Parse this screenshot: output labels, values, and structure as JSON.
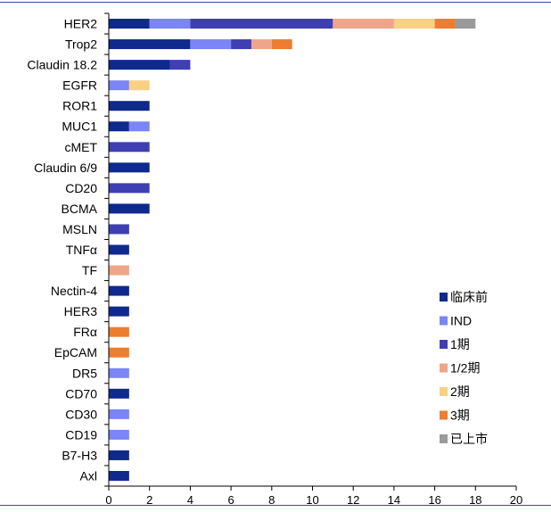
{
  "chart_data": {
    "type": "bar",
    "orientation": "horizontal",
    "stacked": true,
    "categories": [
      "HER2",
      "Trop2",
      "Claudin 18.2",
      "EGFR",
      "ROR1",
      "MUC1",
      "cMET",
      "Claudin 6/9",
      "CD20",
      "BCMA",
      "MSLN",
      "TNFα",
      "TF",
      "Nectin-4",
      "HER3",
      "FRα",
      "EpCAM",
      "DR5",
      "CD70",
      "CD30",
      "CD19",
      "B7-H3",
      "Axl"
    ],
    "series": [
      {
        "name": "临床前",
        "color": "#0f2a8c",
        "values": [
          2,
          4,
          3,
          0,
          2,
          1,
          0,
          2,
          0,
          2,
          0,
          1,
          0,
          1,
          1,
          0,
          0,
          0,
          1,
          0,
          0,
          1,
          1
        ]
      },
      {
        "name": "IND",
        "color": "#7b85f5",
        "values": [
          2,
          2,
          0,
          1,
          0,
          1,
          0,
          0,
          0,
          0,
          0,
          0,
          0,
          0,
          0,
          0,
          0,
          1,
          0,
          1,
          1,
          0,
          0
        ]
      },
      {
        "name": "1期",
        "color": "#3f3fb2",
        "values": [
          7,
          1,
          1,
          0,
          0,
          0,
          2,
          0,
          2,
          0,
          1,
          0,
          0,
          0,
          0,
          0,
          0,
          0,
          0,
          0,
          0,
          0,
          0
        ]
      },
      {
        "name": "1/2期",
        "color": "#f0a58a",
        "values": [
          3,
          1,
          0,
          0,
          0,
          0,
          0,
          0,
          0,
          0,
          0,
          0,
          1,
          0,
          0,
          0,
          0,
          0,
          0,
          0,
          0,
          0,
          0
        ]
      },
      {
        "name": "2期",
        "color": "#fad083",
        "values": [
          2,
          0,
          0,
          1,
          0,
          0,
          0,
          0,
          0,
          0,
          0,
          0,
          0,
          0,
          0,
          0,
          0,
          0,
          0,
          0,
          0,
          0,
          0
        ]
      },
      {
        "name": "3期",
        "color": "#ee7d30",
        "values": [
          1,
          1,
          0,
          0,
          0,
          0,
          0,
          0,
          0,
          0,
          0,
          0,
          0,
          0,
          0,
          1,
          1,
          0,
          0,
          0,
          0,
          0,
          0
        ]
      },
      {
        "name": "已上市",
        "color": "#9a9a9a",
        "values": [
          1,
          0,
          0,
          0,
          0,
          0,
          0,
          0,
          0,
          0,
          0,
          0,
          0,
          0,
          0,
          0,
          0,
          0,
          0,
          0,
          0,
          0,
          0
        ]
      }
    ],
    "xlim": [
      0,
      20
    ],
    "xticks": [
      0,
      2,
      4,
      6,
      8,
      10,
      12,
      14,
      16,
      18,
      20
    ],
    "grid": false,
    "legend_position": "right"
  }
}
